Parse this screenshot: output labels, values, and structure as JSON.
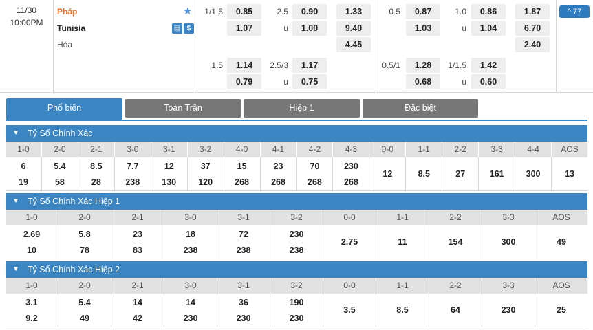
{
  "match": {
    "date": "11/30",
    "time": "10:00PM",
    "home": "Pháp",
    "away": "Tunisia",
    "draw": "Hòa",
    "more_label": "^ 77"
  },
  "odds": {
    "ft_hdp_line1": "1/1.5",
    "ft_hdp_home1": "0.85",
    "ft_hdp_away1": "1.07",
    "ft_ou_line1": "2.5",
    "ft_ou_over1": "0.90",
    "ft_ou_u1": "u",
    "ft_ou_under1": "1.00",
    "ft_1x2_home": "1.33",
    "ft_1x2_away": "9.40",
    "ft_1x2_draw": "4.45",
    "ft_hdp_line2": "1.5",
    "ft_hdp_home2": "1.14",
    "ft_hdp_away2": "0.79",
    "ft_ou_line2": "2.5/3",
    "ft_ou_over2": "1.17",
    "ft_ou_u2": "u",
    "ft_ou_under2": "0.75",
    "h1_hdp_line1": "0.5",
    "h1_hdp_home1": "0.87",
    "h1_hdp_away1": "1.03",
    "h1_ou_line1": "1.0",
    "h1_ou_over1": "0.86",
    "h1_ou_u1": "u",
    "h1_ou_under1": "1.04",
    "h1_1x2_home": "1.87",
    "h1_1x2_away": "6.70",
    "h1_1x2_draw": "2.40",
    "h1_hdp_line2": "0.5/1",
    "h1_hdp_home2": "1.28",
    "h1_hdp_away2": "0.68",
    "h1_ou_line2": "1/1.5",
    "h1_ou_over2": "1.42",
    "h1_ou_u2": "u",
    "h1_ou_under2": "0.60"
  },
  "tabs": [
    "Phổ biến",
    "Toàn Trận",
    "Hiệp 1",
    "Đặc biệt"
  ],
  "sections": [
    {
      "title": "Tỷ Số Chính Xác",
      "headers": [
        "1-0",
        "2-0",
        "2-1",
        "3-0",
        "3-1",
        "3-2",
        "4-0",
        "4-1",
        "4-2",
        "4-3",
        "0-0",
        "1-1",
        "2-2",
        "3-3",
        "4-4",
        "AOS"
      ],
      "top": [
        "6",
        "5.4",
        "8.5",
        "7.7",
        "12",
        "37",
        "15",
        "23",
        "70",
        "230"
      ],
      "bottom": [
        "19",
        "58",
        "28",
        "238",
        "130",
        "120",
        "268",
        "268",
        "268",
        "268"
      ],
      "single": [
        "12",
        "8.5",
        "27",
        "161",
        "300",
        "13"
      ]
    },
    {
      "title": "Tỷ Số Chính Xác Hiệp 1",
      "headers": [
        "1-0",
        "2-0",
        "2-1",
        "3-0",
        "3-1",
        "3-2",
        "0-0",
        "1-1",
        "2-2",
        "3-3",
        "AOS"
      ],
      "top": [
        "2.69",
        "5.8",
        "23",
        "18",
        "72",
        "230"
      ],
      "bottom": [
        "10",
        "78",
        "83",
        "238",
        "238",
        "238"
      ],
      "single": [
        "2.75",
        "11",
        "154",
        "300",
        "49"
      ]
    },
    {
      "title": "Tỷ Số Chính Xác Hiệp 2",
      "headers": [
        "1-0",
        "2-0",
        "2-1",
        "3-0",
        "3-1",
        "3-2",
        "0-0",
        "1-1",
        "2-2",
        "3-3",
        "AOS"
      ],
      "top": [
        "3.1",
        "5.4",
        "14",
        "14",
        "36",
        "190"
      ],
      "bottom": [
        "9.2",
        "49",
        "42",
        "230",
        "230",
        "230"
      ],
      "single": [
        "3.5",
        "8.5",
        "64",
        "230",
        "25"
      ]
    }
  ],
  "colors": {
    "accent": "#3b85c3",
    "home": "#e8712b",
    "tab_inactive": "#777777"
  }
}
